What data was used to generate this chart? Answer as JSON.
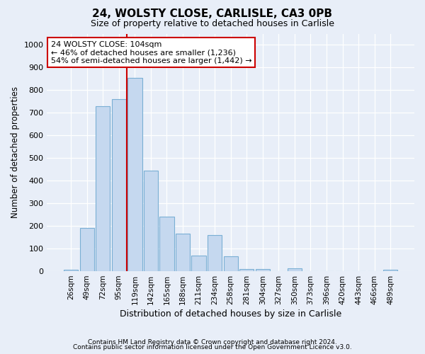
{
  "title1": "24, WOLSTY CLOSE, CARLISLE, CA3 0PB",
  "title2": "Size of property relative to detached houses in Carlisle",
  "xlabel": "Distribution of detached houses by size in Carlisle",
  "ylabel": "Number of detached properties",
  "categories": [
    "26sqm",
    "49sqm",
    "72sqm",
    "95sqm",
    "119sqm",
    "142sqm",
    "165sqm",
    "188sqm",
    "211sqm",
    "234sqm",
    "258sqm",
    "281sqm",
    "304sqm",
    "327sqm",
    "350sqm",
    "373sqm",
    "396sqm",
    "420sqm",
    "443sqm",
    "466sqm",
    "489sqm"
  ],
  "values": [
    8,
    190,
    730,
    760,
    855,
    445,
    240,
    165,
    70,
    160,
    65,
    10,
    10,
    0,
    12,
    0,
    0,
    0,
    0,
    0,
    8
  ],
  "bar_color": "#c5d8ef",
  "bar_edge_color": "#7aafd4",
  "background_color": "#e8eef8",
  "grid_color": "#d0d8e8",
  "vline_x": 3.5,
  "vline_color": "#cc0000",
  "annotation_text": "24 WOLSTY CLOSE: 104sqm\n← 46% of detached houses are smaller (1,236)\n54% of semi-detached houses are larger (1,442) →",
  "annotation_box_color": "#ffffff",
  "annotation_box_edge": "#cc0000",
  "ylim": [
    0,
    1050
  ],
  "yticks": [
    0,
    100,
    200,
    300,
    400,
    500,
    600,
    700,
    800,
    900,
    1000
  ],
  "footnote1": "Contains HM Land Registry data © Crown copyright and database right 2024.",
  "footnote2": "Contains public sector information licensed under the Open Government Licence v3.0."
}
